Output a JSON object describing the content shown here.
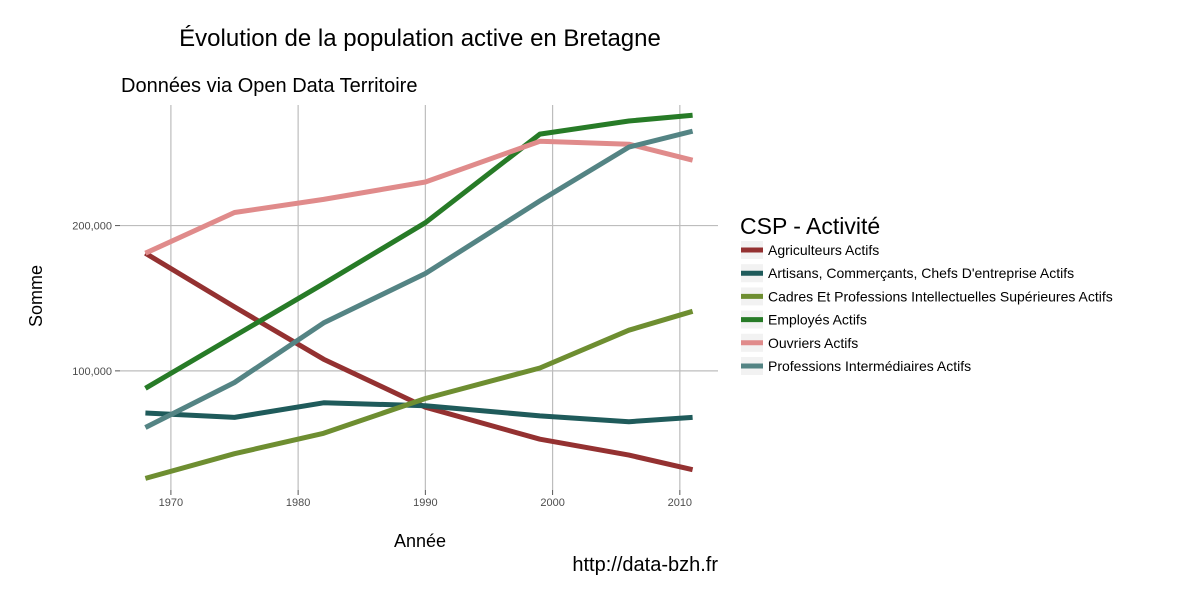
{
  "chart_data": {
    "type": "line",
    "title": "Évolution de la population active en Bretagne",
    "subtitle": "Données via Open Data Territoire",
    "xlabel": "Année",
    "ylabel": "Somme",
    "source": "http://data-bzh.fr",
    "x": [
      1968,
      1975,
      1982,
      1990,
      1999,
      2006,
      2011
    ],
    "xlim": [
      1966,
      2013
    ],
    "ylim": [
      18000,
      283000
    ],
    "x_ticks": [
      1970,
      1980,
      1990,
      2000,
      2010
    ],
    "x_tick_labels": [
      "1970",
      "1980",
      "1990",
      "2000",
      "2010"
    ],
    "y_ticks": [
      100000,
      200000
    ],
    "y_tick_labels": [
      "100,000",
      "200,000"
    ],
    "grid": true,
    "legend": {
      "title": "CSP - Activité",
      "placement": "right"
    },
    "series": [
      {
        "name": "Agriculteurs Actifs",
        "color": "#943131",
        "values": [
          181000,
          144000,
          108000,
          75000,
          53000,
          42000,
          32000
        ]
      },
      {
        "name": "Artisans, Commerçants, Chefs D'entreprise Actifs",
        "color": "#1f5b5b",
        "values": [
          71000,
          68000,
          78000,
          76000,
          69000,
          65000,
          68000
        ]
      },
      {
        "name": "Cadres Et Professions Intellectuelles Supérieures Actifs",
        "color": "#6e8e31",
        "values": [
          26000,
          43000,
          57000,
          81000,
          102000,
          128000,
          141000
        ]
      },
      {
        "name": "Employés Actifs",
        "color": "#277b27",
        "values": [
          88000,
          124000,
          160000,
          202000,
          263000,
          272000,
          276000
        ]
      },
      {
        "name": "Ouvriers Actifs",
        "color": "#e08b8b",
        "values": [
          181000,
          209000,
          218000,
          230000,
          258000,
          256000,
          245000
        ]
      },
      {
        "name": "Professions Intermédiaires Actifs",
        "color": "#548484",
        "values": [
          61000,
          92000,
          133000,
          167000,
          217000,
          254000,
          265000
        ]
      }
    ]
  }
}
